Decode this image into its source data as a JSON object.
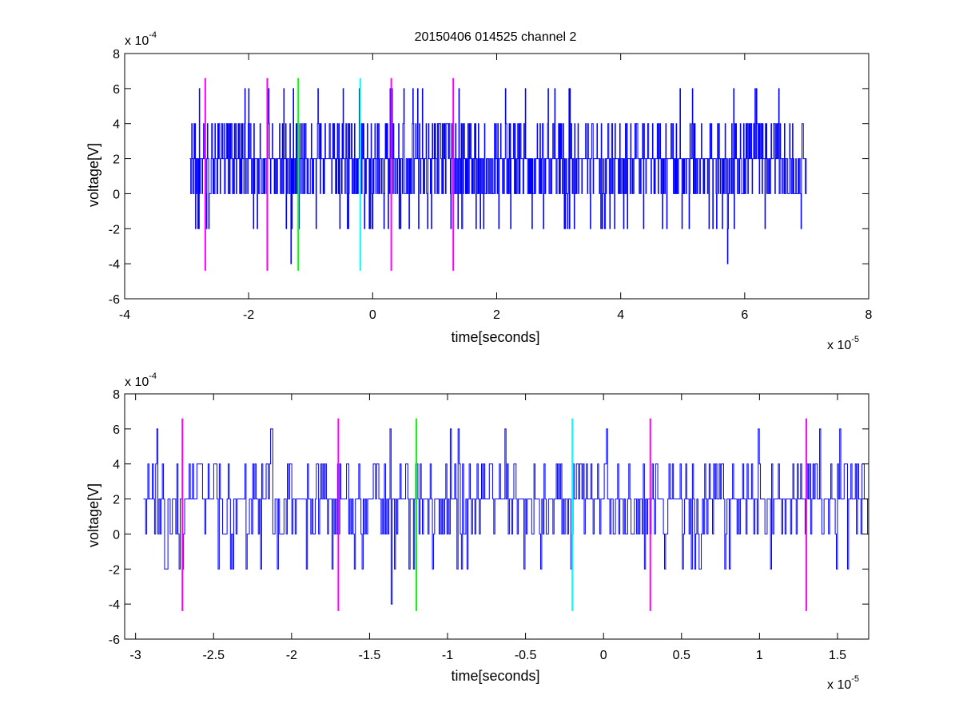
{
  "figure": {
    "title": "20150406 014525 channel 2"
  },
  "chart_data": [
    {
      "type": "line",
      "title": "20150406 014525 channel 2",
      "xlabel": "time[seconds]",
      "ylabel": "voltage[V]",
      "x_exponent_label": "x 10",
      "x_exponent_power": "-5",
      "y_exponent_label": "x 10",
      "y_exponent_power": "-4",
      "xlim": [
        -4,
        8
      ],
      "ylim": [
        -6,
        8
      ],
      "xticks": [
        -4,
        -2,
        0,
        2,
        4,
        6,
        8
      ],
      "xtick_labels": [
        "-4",
        "-2",
        "0",
        "2",
        "4",
        "6",
        "8"
      ],
      "yticks": [
        -6,
        -4,
        -2,
        0,
        2,
        4,
        6,
        8
      ],
      "ytick_labels": [
        "-6",
        "-4",
        "-2",
        "0",
        "2",
        "4",
        "6",
        "8"
      ],
      "grid": false,
      "series": [
        {
          "color": "#0000ff",
          "x_range": [
            -2.95,
            7.0
          ],
          "baseline": 2,
          "levels": [
            -4,
            -2,
            0,
            2,
            4,
            6
          ],
          "spikes": [
            {
              "x": -1.68,
              "y": 6
            },
            {
              "x": -1.68,
              "y": 6
            },
            {
              "x": -1.32,
              "y": -4
            },
            {
              "x": -0.88,
              "y": 6
            },
            {
              "x": -0.22,
              "y": 6
            },
            {
              "x": 0.0,
              "y": -2
            },
            {
              "x": 0.28,
              "y": 6
            },
            {
              "x": 2.83,
              "y": 6
            },
            {
              "x": 5.72,
              "y": -4
            },
            {
              "x": 6.55,
              "y": 6
            }
          ]
        }
      ],
      "markers": [
        {
          "x": -2.7,
          "color": "#ff00ff",
          "ymin": -4.4,
          "ymax": 6.6
        },
        {
          "x": -1.7,
          "color": "#ff00ff",
          "ymin": -4.4,
          "ymax": 6.6
        },
        {
          "x": -1.2,
          "color": "#00ff00",
          "ymin": -4.4,
          "ymax": 6.6
        },
        {
          "x": -0.2,
          "color": "#00ffff",
          "ymin": -4.4,
          "ymax": 6.6
        },
        {
          "x": 0.3,
          "color": "#ff00ff",
          "ymin": -4.4,
          "ymax": 6.6
        },
        {
          "x": 1.3,
          "color": "#ff00ff",
          "ymin": -4.4,
          "ymax": 6.6
        }
      ]
    },
    {
      "type": "line",
      "title": "",
      "xlabel": "time[seconds]",
      "ylabel": "voltage[V]",
      "x_exponent_label": "x 10",
      "x_exponent_power": "-5",
      "y_exponent_label": "x 10",
      "y_exponent_power": "-4",
      "xlim": [
        -3.07,
        1.7
      ],
      "ylim": [
        -6,
        8
      ],
      "xticks": [
        -3,
        -2.5,
        -2,
        -1.5,
        -1,
        -0.5,
        0,
        0.5,
        1,
        1.5
      ],
      "xtick_labels": [
        "-3",
        "-2.5",
        "-2",
        "-1.5",
        "-1",
        "-0.5",
        "0",
        "0.5",
        "1",
        "1.5"
      ],
      "yticks": [
        -6,
        -4,
        -2,
        0,
        2,
        4,
        6,
        8
      ],
      "ytick_labels": [
        "-6",
        "-4",
        "-2",
        "0",
        "2",
        "4",
        "6",
        "8"
      ],
      "grid": false,
      "series": [
        {
          "color": "#0000ff",
          "x_range": [
            -2.95,
            1.7
          ],
          "baseline": 2,
          "levels": [
            -4,
            -2,
            0,
            2,
            4,
            6
          ],
          "spikes": [
            {
              "x": -1.37,
              "y": 6
            },
            {
              "x": -1.36,
              "y": -4
            },
            {
              "x": -0.98,
              "y": 6
            },
            {
              "x": -0.63,
              "y": 6
            },
            {
              "x": -0.51,
              "y": -2
            },
            {
              "x": -0.21,
              "y": -2
            },
            {
              "x": 0.02,
              "y": 6
            },
            {
              "x": 0.26,
              "y": -2
            },
            {
              "x": 0.56,
              "y": -2
            }
          ]
        }
      ],
      "markers": [
        {
          "x": -2.7,
          "color": "#ff00ff",
          "ymin": -4.4,
          "ymax": 6.6
        },
        {
          "x": -1.7,
          "color": "#ff00ff",
          "ymin": -4.4,
          "ymax": 6.6
        },
        {
          "x": -1.2,
          "color": "#00ff00",
          "ymin": -4.4,
          "ymax": 6.6
        },
        {
          "x": -0.2,
          "color": "#00ffff",
          "ymin": -4.4,
          "ymax": 6.6
        },
        {
          "x": 0.3,
          "color": "#ff00ff",
          "ymin": -4.4,
          "ymax": 6.6
        },
        {
          "x": 1.3,
          "color": "#ff00ff",
          "ymin": -4.4,
          "ymax": 6.6
        }
      ]
    }
  ]
}
